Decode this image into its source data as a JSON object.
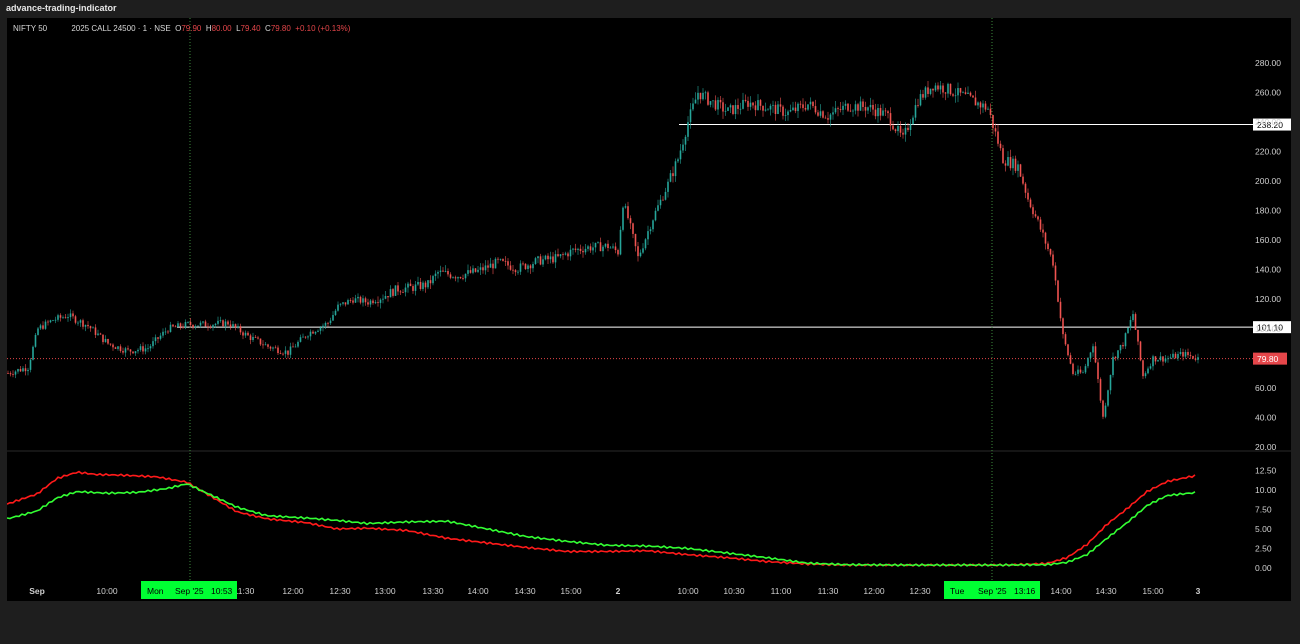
{
  "app": {
    "title": "advance-trading-indicator"
  },
  "legend": {
    "symbol": "NIFTY 50",
    "contract": "2025 CALL 24500 · 1 · NSE",
    "open_key": "O",
    "open": "79.90",
    "high_key": "H",
    "high": "80.00",
    "low_key": "L",
    "low": "79.40",
    "close_key": "C",
    "close": "79.80",
    "change": "+0.10 (+0.13%)"
  },
  "colors": {
    "bg": "#000000",
    "up": "#26a69a",
    "down": "#ef5350",
    "price_tag": "#e5464a",
    "crosshair_tag": "#00ff33",
    "red_line": "#ff1a1a",
    "green_line": "#33ff33"
  },
  "crosshair": {
    "label_mon": "Mon",
    "label_mon_date": "Sep '25",
    "label_mon_time": "10:53",
    "label_tue": "Tue",
    "label_tue_date": "Sep '25",
    "label_tue_time": "13:16"
  },
  "chart_data": [
    {
      "type": "candlestick",
      "title": "",
      "y_ticks": [
        "280.00",
        "260.00",
        "240.00",
        "220.00",
        "200.00",
        "180.00",
        "160.00",
        "140.00",
        "120.00",
        "100.00",
        "80.00",
        "60.00",
        "40.00",
        "20.00"
      ],
      "ylim": [
        20,
        290
      ],
      "horizontal_lines": [
        {
          "value": 238.2,
          "label": "238.20"
        },
        {
          "value": 101.1,
          "label": "101.10"
        }
      ],
      "last_price": {
        "value": 79.8,
        "label": "79.80"
      },
      "price_path": [
        [
          0,
          70
        ],
        [
          20,
          74
        ],
        [
          30,
          100
        ],
        [
          45,
          106
        ],
        [
          60,
          109
        ],
        [
          80,
          102
        ],
        [
          100,
          90
        ],
        [
          120,
          85
        ],
        [
          140,
          87
        ],
        [
          160,
          100
        ],
        [
          180,
          103
        ],
        [
          200,
          103
        ],
        [
          220,
          104
        ],
        [
          240,
          95
        ],
        [
          260,
          88
        ],
        [
          280,
          84
        ],
        [
          300,
          97
        ],
        [
          320,
          104
        ],
        [
          330,
          115
        ],
        [
          345,
          120
        ],
        [
          360,
          118
        ],
        [
          375,
          122
        ],
        [
          390,
          127
        ],
        [
          405,
          128
        ],
        [
          420,
          130
        ],
        [
          430,
          138
        ],
        [
          450,
          136
        ],
        [
          470,
          139
        ],
        [
          490,
          145
        ],
        [
          510,
          141
        ],
        [
          530,
          146
        ],
        [
          550,
          148
        ],
        [
          565,
          153
        ],
        [
          580,
          155
        ],
        [
          600,
          156
        ],
        [
          610,
          152
        ],
        [
          615,
          185
        ],
        [
          620,
          175
        ],
        [
          630,
          148
        ],
        [
          645,
          175
        ],
        [
          660,
          198
        ],
        [
          670,
          215
        ],
        [
          680,
          240
        ],
        [
          690,
          260
        ],
        [
          700,
          255
        ],
        [
          720,
          247
        ],
        [
          740,
          253
        ],
        [
          760,
          250
        ],
        [
          780,
          246
        ],
        [
          800,
          252
        ],
        [
          820,
          244
        ],
        [
          840,
          251
        ],
        [
          860,
          250
        ],
        [
          880,
          244
        ],
        [
          895,
          228
        ],
        [
          910,
          255
        ],
        [
          925,
          265
        ],
        [
          940,
          262
        ],
        [
          960,
          256
        ],
        [
          980,
          249
        ],
        [
          995,
          215
        ],
        [
          1010,
          210
        ],
        [
          1020,
          188
        ],
        [
          1030,
          172
        ],
        [
          1045,
          145
        ],
        [
          1055,
          95
        ],
        [
          1065,
          70
        ],
        [
          1075,
          70
        ],
        [
          1085,
          90
        ],
        [
          1095,
          40
        ],
        [
          1105,
          80
        ],
        [
          1115,
          90
        ],
        [
          1125,
          110
        ],
        [
          1135,
          68
        ],
        [
          1145,
          80
        ],
        [
          1160,
          80
        ],
        [
          1175,
          83
        ],
        [
          1190,
          80
        ]
      ]
    },
    {
      "type": "line",
      "title": "",
      "y_ticks": [
        "12.50",
        "10.00",
        "7.50",
        "5.00",
        "2.50",
        "0.00"
      ],
      "ylim": [
        -0.8,
        14.0
      ],
      "x_labels": [
        "Sep",
        "10:00",
        "10:53",
        "11:30",
        "12:00",
        "12:30",
        "13:00",
        "13:30",
        "14:00",
        "14:30",
        "15:00",
        "2",
        "10:00",
        "10:30",
        "11:00",
        "11:30",
        "12:00",
        "12:30",
        "13:16",
        "14:00",
        "14:30",
        "15:00",
        "3"
      ],
      "series": [
        {
          "values": [
            [
              0,
              8.2
            ],
            [
              30,
              9.5
            ],
            [
              50,
              11.5
            ],
            [
              70,
              12.3
            ],
            [
              90,
              12.0
            ],
            [
              120,
              11.9
            ],
            [
              150,
              11.7
            ],
            [
              180,
              11.0
            ],
            [
              200,
              9.5
            ],
            [
              230,
              7.2
            ],
            [
              260,
              6.3
            ],
            [
              300,
              5.8
            ],
            [
              330,
              5.0
            ],
            [
              360,
              5.1
            ],
            [
              400,
              4.8
            ],
            [
              440,
              3.8
            ],
            [
              480,
              3.2
            ],
            [
              520,
              2.6
            ],
            [
              560,
              2.1
            ],
            [
              600,
              2.1
            ],
            [
              640,
              2.2
            ],
            [
              680,
              1.7
            ],
            [
              720,
              1.3
            ],
            [
              760,
              0.8
            ],
            [
              800,
              0.5
            ],
            [
              840,
              0.35
            ],
            [
              900,
              0.35
            ],
            [
              950,
              0.35
            ],
            [
              1000,
              0.35
            ],
            [
              1040,
              0.55
            ],
            [
              1060,
              1.3
            ],
            [
              1080,
              3.0
            ],
            [
              1100,
              5.6
            ],
            [
              1120,
              7.6
            ],
            [
              1140,
              9.8
            ],
            [
              1160,
              11.1
            ],
            [
              1190,
              11.9
            ]
          ]
        },
        {
          "values": [
            [
              0,
              6.3
            ],
            [
              30,
              7.3
            ],
            [
              50,
              9.0
            ],
            [
              70,
              9.8
            ],
            [
              100,
              9.6
            ],
            [
              130,
              9.7
            ],
            [
              160,
              10.2
            ],
            [
              180,
              10.8
            ],
            [
              200,
              9.6
            ],
            [
              230,
              7.8
            ],
            [
              260,
              6.7
            ],
            [
              300,
              6.4
            ],
            [
              330,
              6.1
            ],
            [
              360,
              5.7
            ],
            [
              400,
              5.9
            ],
            [
              440,
              6.0
            ],
            [
              480,
              5.0
            ],
            [
              520,
              4.0
            ],
            [
              560,
              3.4
            ],
            [
              600,
              2.9
            ],
            [
              640,
              2.8
            ],
            [
              680,
              2.5
            ],
            [
              720,
              1.9
            ],
            [
              760,
              1.3
            ],
            [
              800,
              0.6
            ],
            [
              840,
              0.4
            ],
            [
              900,
              0.35
            ],
            [
              950,
              0.35
            ],
            [
              1000,
              0.35
            ],
            [
              1040,
              0.4
            ],
            [
              1060,
              0.7
            ],
            [
              1080,
              1.7
            ],
            [
              1100,
              3.8
            ],
            [
              1120,
              5.8
            ],
            [
              1140,
              8.0
            ],
            [
              1160,
              9.3
            ],
            [
              1190,
              9.7
            ]
          ]
        }
      ]
    }
  ]
}
